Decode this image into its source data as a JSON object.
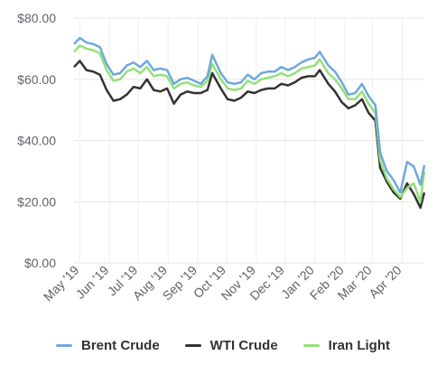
{
  "chart_data": {
    "type": "line",
    "title": "",
    "xlabel": "",
    "ylabel": "",
    "ylim": [
      0,
      80
    ],
    "y_ticks": [
      "$0.00",
      "$20.00",
      "$40.00",
      "$60.00",
      "$80.00"
    ],
    "x_ticks": [
      "May '19",
      "Jun '19",
      "Jul '19",
      "Aug '19",
      "Sep '19",
      "Oct '19",
      "Nov '19",
      "Dec '19",
      "Jan '20",
      "Feb '20",
      "Mar '20",
      "Apr '20"
    ],
    "grid": true,
    "legend_position": "bottom",
    "x": [
      "2019-04-25",
      "2019-05-01",
      "2019-05-08",
      "2019-05-15",
      "2019-05-22",
      "2019-05-29",
      "2019-06-05",
      "2019-06-12",
      "2019-06-19",
      "2019-06-26",
      "2019-07-03",
      "2019-07-10",
      "2019-07-17",
      "2019-07-24",
      "2019-07-31",
      "2019-08-07",
      "2019-08-14",
      "2019-08-21",
      "2019-08-28",
      "2019-09-04",
      "2019-09-11",
      "2019-09-16",
      "2019-09-25",
      "2019-10-02",
      "2019-10-09",
      "2019-10-16",
      "2019-10-23",
      "2019-10-30",
      "2019-11-06",
      "2019-11-13",
      "2019-11-20",
      "2019-11-27",
      "2019-12-04",
      "2019-12-11",
      "2019-12-18",
      "2019-12-25",
      "2020-01-01",
      "2020-01-06",
      "2020-01-15",
      "2020-01-22",
      "2020-01-29",
      "2020-02-05",
      "2020-02-12",
      "2020-02-19",
      "2020-02-26",
      "2020-03-04",
      "2020-03-09",
      "2020-03-16",
      "2020-03-23",
      "2020-03-30",
      "2020-04-06",
      "2020-04-13",
      "2020-04-20",
      "2020-04-24"
    ],
    "series": [
      {
        "name": "Brent Crude",
        "color": "#6fa8dc",
        "values": [
          71.5,
          73.5,
          72.0,
          71.5,
          70.5,
          65.0,
          61.5,
          62.0,
          64.5,
          65.5,
          64.0,
          66.0,
          63.0,
          63.5,
          63.0,
          58.5,
          60.0,
          60.5,
          59.5,
          58.5,
          61.0,
          68.0,
          62.0,
          59.0,
          58.5,
          59.0,
          61.5,
          60.0,
          62.0,
          62.5,
          62.5,
          64.0,
          63.0,
          64.0,
          65.5,
          66.5,
          67.0,
          69.0,
          64.5,
          62.5,
          59.0,
          55.0,
          55.5,
          58.5,
          54.5,
          51.5,
          36.0,
          30.0,
          27.0,
          23.0,
          33.0,
          31.5,
          25.5,
          32.0
        ]
      },
      {
        "name": "WTI Crude",
        "color": "#333333",
        "values": [
          64.0,
          66.0,
          63.0,
          62.5,
          61.5,
          56.5,
          53.0,
          53.5,
          55.0,
          57.5,
          57.0,
          60.0,
          56.5,
          56.0,
          57.0,
          52.0,
          55.0,
          56.0,
          55.5,
          55.5,
          56.5,
          62.0,
          57.0,
          53.5,
          53.0,
          54.0,
          56.0,
          55.5,
          56.5,
          57.0,
          57.0,
          58.5,
          58.0,
          59.0,
          60.5,
          61.0,
          61.0,
          63.0,
          58.5,
          56.0,
          52.5,
          50.5,
          51.5,
          53.5,
          49.0,
          46.5,
          31.0,
          26.5,
          23.0,
          21.0,
          26.0,
          22.5,
          18.0,
          23.0
        ]
      },
      {
        "name": "Iran Light",
        "color": "#93e07a",
        "values": [
          69.0,
          71.0,
          70.0,
          69.5,
          68.5,
          63.0,
          59.5,
          60.0,
          62.5,
          63.5,
          62.0,
          64.0,
          61.0,
          61.5,
          61.0,
          57.0,
          58.5,
          59.0,
          58.0,
          57.5,
          59.5,
          65.0,
          60.0,
          57.0,
          56.5,
          57.0,
          59.5,
          58.5,
          60.0,
          60.5,
          61.0,
          62.0,
          61.0,
          62.0,
          63.5,
          64.0,
          64.5,
          66.5,
          62.0,
          60.0,
          57.0,
          53.5,
          53.5,
          56.0,
          52.0,
          49.0,
          33.5,
          27.5,
          24.0,
          21.5,
          24.5,
          26.0,
          20.0,
          30.0
        ]
      }
    ]
  }
}
